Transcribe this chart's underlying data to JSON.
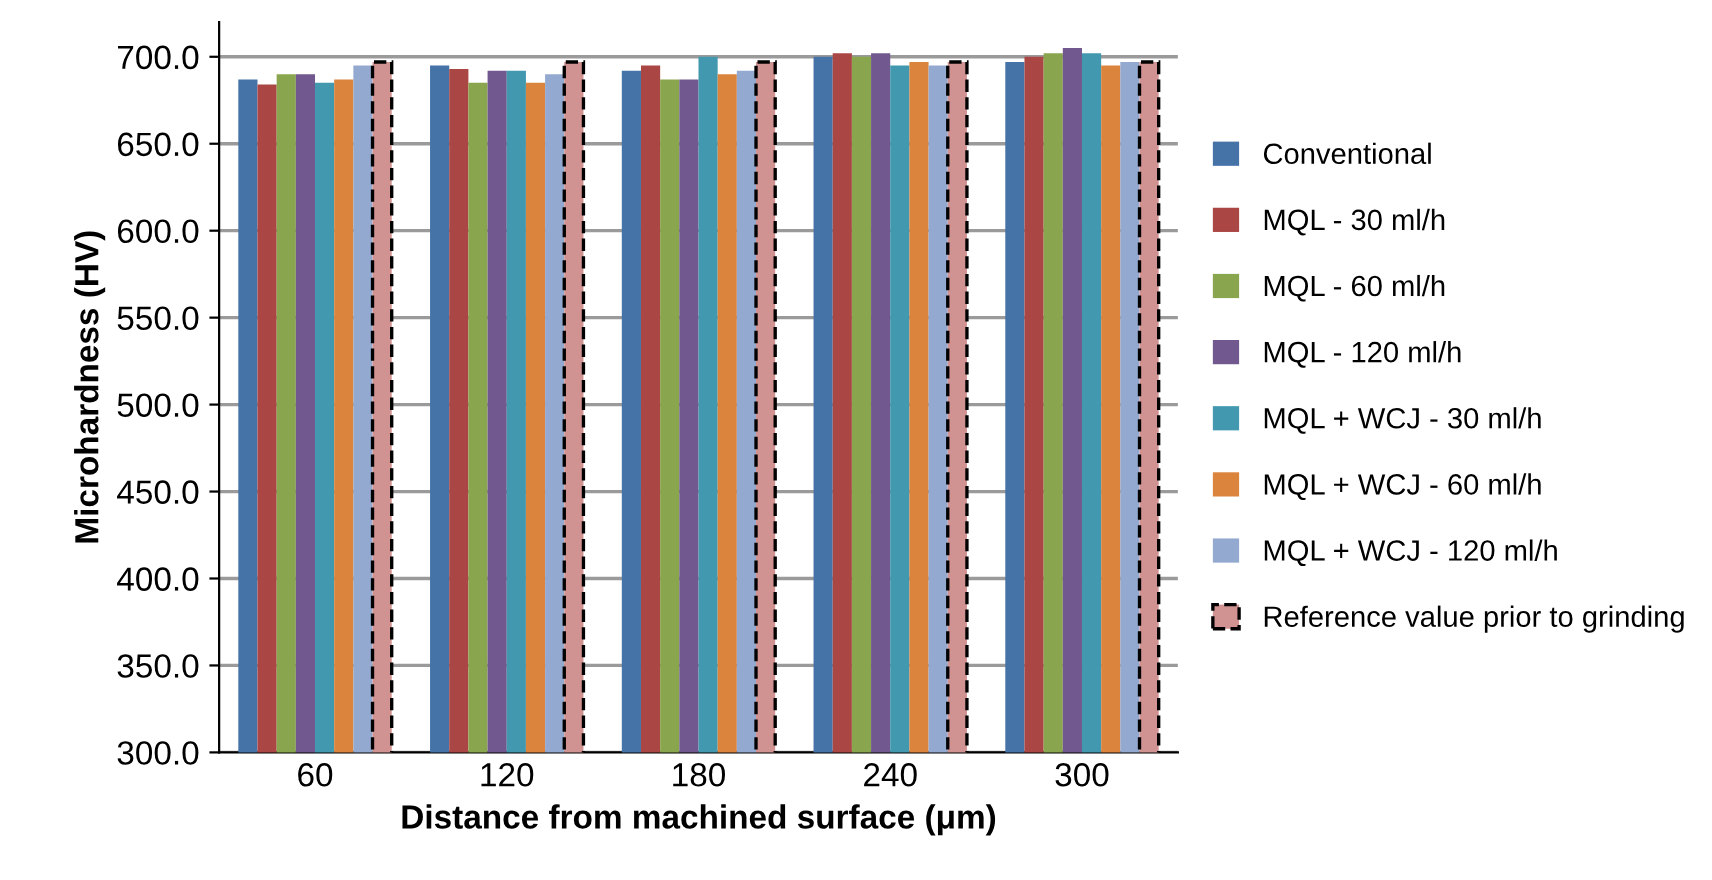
{
  "chart_data": {
    "type": "bar",
    "xlabel": "Distance from machined surface (μm)",
    "ylabel": "Microhardness (HV)",
    "categories": [
      "60",
      "120",
      "180",
      "240",
      "300"
    ],
    "series": [
      {
        "name": "Conventional",
        "color": "#4572a7",
        "values": [
          687,
          695,
          692,
          700,
          697
        ]
      },
      {
        "name": "MQL - 30 ml/h",
        "color": "#aa4643",
        "values": [
          684,
          693,
          695,
          702,
          700
        ]
      },
      {
        "name": "MQL - 60 ml/h",
        "color": "#89a54e",
        "values": [
          690,
          685,
          687,
          700,
          702
        ]
      },
      {
        "name": "MQL - 120 ml/h",
        "color": "#71588f",
        "values": [
          690,
          692,
          687,
          702,
          705
        ]
      },
      {
        "name": "MQL + WCJ - 30 ml/h",
        "color": "#4198af",
        "values": [
          685,
          692,
          700,
          695,
          702
        ]
      },
      {
        "name": "MQL + WCJ - 60 ml/h",
        "color": "#db843d",
        "values": [
          687,
          685,
          690,
          697,
          695
        ]
      },
      {
        "name": "MQL + WCJ - 120 ml/h",
        "color": "#93a9cf",
        "values": [
          695,
          690,
          692,
          695,
          697
        ]
      },
      {
        "name": "Reference value prior to grinding",
        "color": "#d19392",
        "line_style": "dashed",
        "values": [
          697,
          697,
          697,
          697,
          697
        ]
      }
    ],
    "ylim": [
      300,
      720
    ],
    "yticks": [
      {
        "value": 300,
        "label": "300.0"
      },
      {
        "value": 350,
        "label": "350.0"
      },
      {
        "value": 400,
        "label": "400.0"
      },
      {
        "value": 450,
        "label": "450.0"
      },
      {
        "value": 500,
        "label": "500.0"
      },
      {
        "value": 550,
        "label": "550.0"
      },
      {
        "value": 600,
        "label": "600.0"
      },
      {
        "value": 650,
        "label": "650.0"
      },
      {
        "value": 700,
        "label": "700.0"
      }
    ],
    "grid": "y",
    "legend": "right"
  }
}
